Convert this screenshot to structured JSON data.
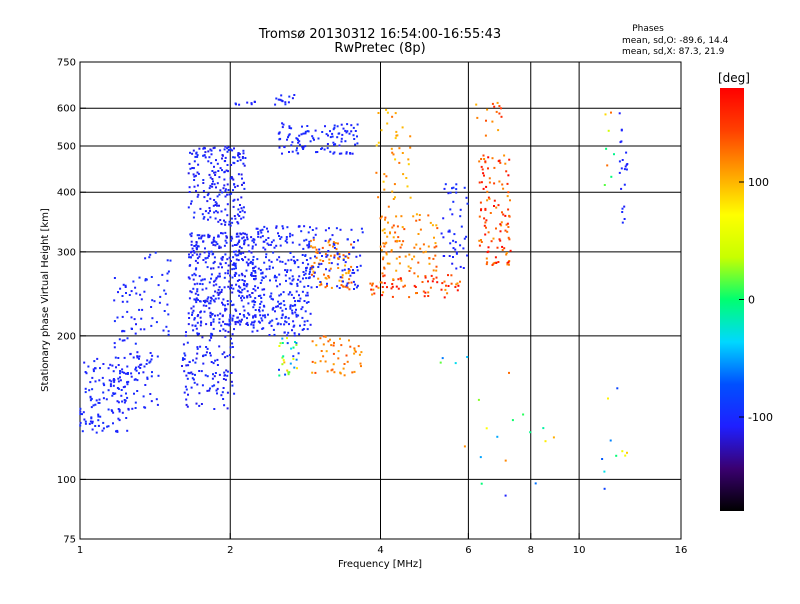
{
  "chart_data": {
    "type": "scatter",
    "title": "Tromsø 20130312 16:54:00-16:55:43",
    "subtitle": "RwPretec (8p)",
    "stats": {
      "heading": "Phases",
      "line_o": "mean, sd,O: -89.6, 14.4",
      "line_x": "mean, sd,X:  87.3, 21.9"
    },
    "xlabel": "Frequency [MHz]",
    "ylabel": "Stationary phase Virtual Height [km]",
    "x_scale": "log",
    "y_scale": "log",
    "xlim": [
      1,
      16
    ],
    "ylim": [
      75,
      750
    ],
    "x_ticks": [
      {
        "value": 1,
        "label": "1"
      },
      {
        "value": 2,
        "label": "2"
      },
      {
        "value": 4,
        "label": "4"
      },
      {
        "value": 6,
        "label": "6"
      },
      {
        "value": 8,
        "label": "8"
      },
      {
        "value": 10,
        "label": "10"
      },
      {
        "value": 16,
        "label": "16"
      }
    ],
    "x_gridlines": [
      2,
      4,
      6,
      8,
      10
    ],
    "y_ticks": [
      {
        "value": 75,
        "label": "75"
      },
      {
        "value": 100,
        "label": "100"
      },
      {
        "value": 200,
        "label": "200"
      },
      {
        "value": 300,
        "label": "300"
      },
      {
        "value": 400,
        "label": "400"
      },
      {
        "value": 500,
        "label": "500"
      },
      {
        "value": 600,
        "label": "600"
      },
      {
        "value": 750,
        "label": "750"
      }
    ],
    "y_gridlines": [
      100,
      200,
      300,
      400,
      500,
      600
    ],
    "colorbar": {
      "label": "[deg]",
      "range": [
        -180,
        180
      ],
      "ticks": [
        {
          "value": 100,
          "label": "100"
        },
        {
          "value": 0,
          "label": "0"
        },
        {
          "value": -100,
          "label": "-100"
        }
      ],
      "colors": [
        "#000000",
        "#3a0070",
        "#1f1fff",
        "#0050ff",
        "#00d8ff",
        "#00ff70",
        "#c8ff00",
        "#ffff00",
        "#ffa000",
        "#ff4000",
        "#ff0000"
      ]
    },
    "grid": true,
    "clusters": [
      {
        "x": [
          1.0,
          1.25
        ],
        "y": [
          125,
          180
        ],
        "n": 130,
        "phase": [
          -110,
          -95
        ]
      },
      {
        "x": [
          1.17,
          1.33
        ],
        "y": [
          160,
          270
        ],
        "n": 60,
        "phase": [
          -110,
          -95
        ]
      },
      {
        "x": [
          1.33,
          1.52
        ],
        "y": [
          200,
          300
        ],
        "n": 35,
        "phase": [
          -110,
          -95
        ]
      },
      {
        "x": [
          1.25,
          1.45
        ],
        "y": [
          140,
          190
        ],
        "n": 40,
        "phase": [
          -110,
          -95
        ]
      },
      {
        "x": [
          1.6,
          2.05
        ],
        "y": [
          140,
          210
        ],
        "n": 130,
        "phase": [
          -115,
          -95
        ]
      },
      {
        "x": [
          1.65,
          2.25
        ],
        "y": [
          210,
          330
        ],
        "n": 420,
        "phase": [
          -115,
          -95
        ]
      },
      {
        "x": [
          1.65,
          2.15
        ],
        "y": [
          340,
          500
        ],
        "n": 210,
        "phase": [
          -115,
          -95
        ]
      },
      {
        "x": [
          2.2,
          2.9
        ],
        "y": [
          200,
          340
        ],
        "n": 280,
        "phase": [
          -110,
          -95
        ]
      },
      {
        "x": [
          2.5,
          3.6
        ],
        "y": [
          480,
          560
        ],
        "n": 110,
        "phase": [
          -110,
          -95
        ]
      },
      {
        "x": [
          2.45,
          2.7
        ],
        "y": [
          610,
          640
        ],
        "n": 14,
        "phase": [
          -110,
          -95
        ]
      },
      {
        "x": [
          2.05,
          2.35
        ],
        "y": [
          608,
          620
        ],
        "n": 8,
        "phase": [
          -110,
          -95
        ]
      },
      {
        "x": [
          2.5,
          2.75
        ],
        "y": [
          165,
          200
        ],
        "n": 30,
        "phase": [
          -110,
          110
        ]
      },
      {
        "x": [
          2.9,
          3.7
        ],
        "y": [
          165,
          200
        ],
        "n": 50,
        "phase": [
          100,
          140
        ]
      },
      {
        "x": [
          2.9,
          3.5
        ],
        "y": [
          250,
          320
        ],
        "n": 80,
        "phase": [
          100,
          140
        ]
      },
      {
        "x": [
          2.8,
          3.7
        ],
        "y": [
          250,
          340
        ],
        "n": 90,
        "phase": [
          -110,
          -95
        ]
      },
      {
        "x": [
          3.8,
          5.8
        ],
        "y": [
          240,
          270
        ],
        "n": 70,
        "phase": [
          110,
          180
        ]
      },
      {
        "x": [
          4.0,
          5.2
        ],
        "y": [
          270,
          360
        ],
        "n": 90,
        "phase": [
          100,
          140
        ]
      },
      {
        "x": [
          3.9,
          4.6
        ],
        "y": [
          370,
          600
        ],
        "n": 40,
        "phase": [
          90,
          130
        ]
      },
      {
        "x": [
          5.3,
          6.0
        ],
        "y": [
          270,
          420
        ],
        "n": 45,
        "phase": [
          -110,
          -95
        ]
      },
      {
        "x": [
          6.3,
          7.3
        ],
        "y": [
          280,
          480
        ],
        "n": 110,
        "phase": [
          110,
          180
        ]
      },
      {
        "x": [
          6.2,
          7.0
        ],
        "y": [
          520,
          620
        ],
        "n": 15,
        "phase": [
          100,
          160
        ]
      },
      {
        "x": [
          12.0,
          12.5
        ],
        "y": [
          340,
          600
        ],
        "n": 22,
        "phase": [
          -110,
          -100
        ]
      },
      {
        "x": [
          11.2,
          11.8
        ],
        "y": [
          390,
          600
        ],
        "n": 8,
        "phase": [
          -10,
          130
        ]
      },
      {
        "x": [
          11.0,
          12.8
        ],
        "y": [
          90,
          180
        ],
        "n": 10,
        "phase": [
          -110,
          100
        ]
      },
      {
        "x": [
          5.2,
          9.0
        ],
        "y": [
          92,
          190
        ],
        "n": 20,
        "phase": [
          -110,
          130
        ]
      }
    ]
  }
}
